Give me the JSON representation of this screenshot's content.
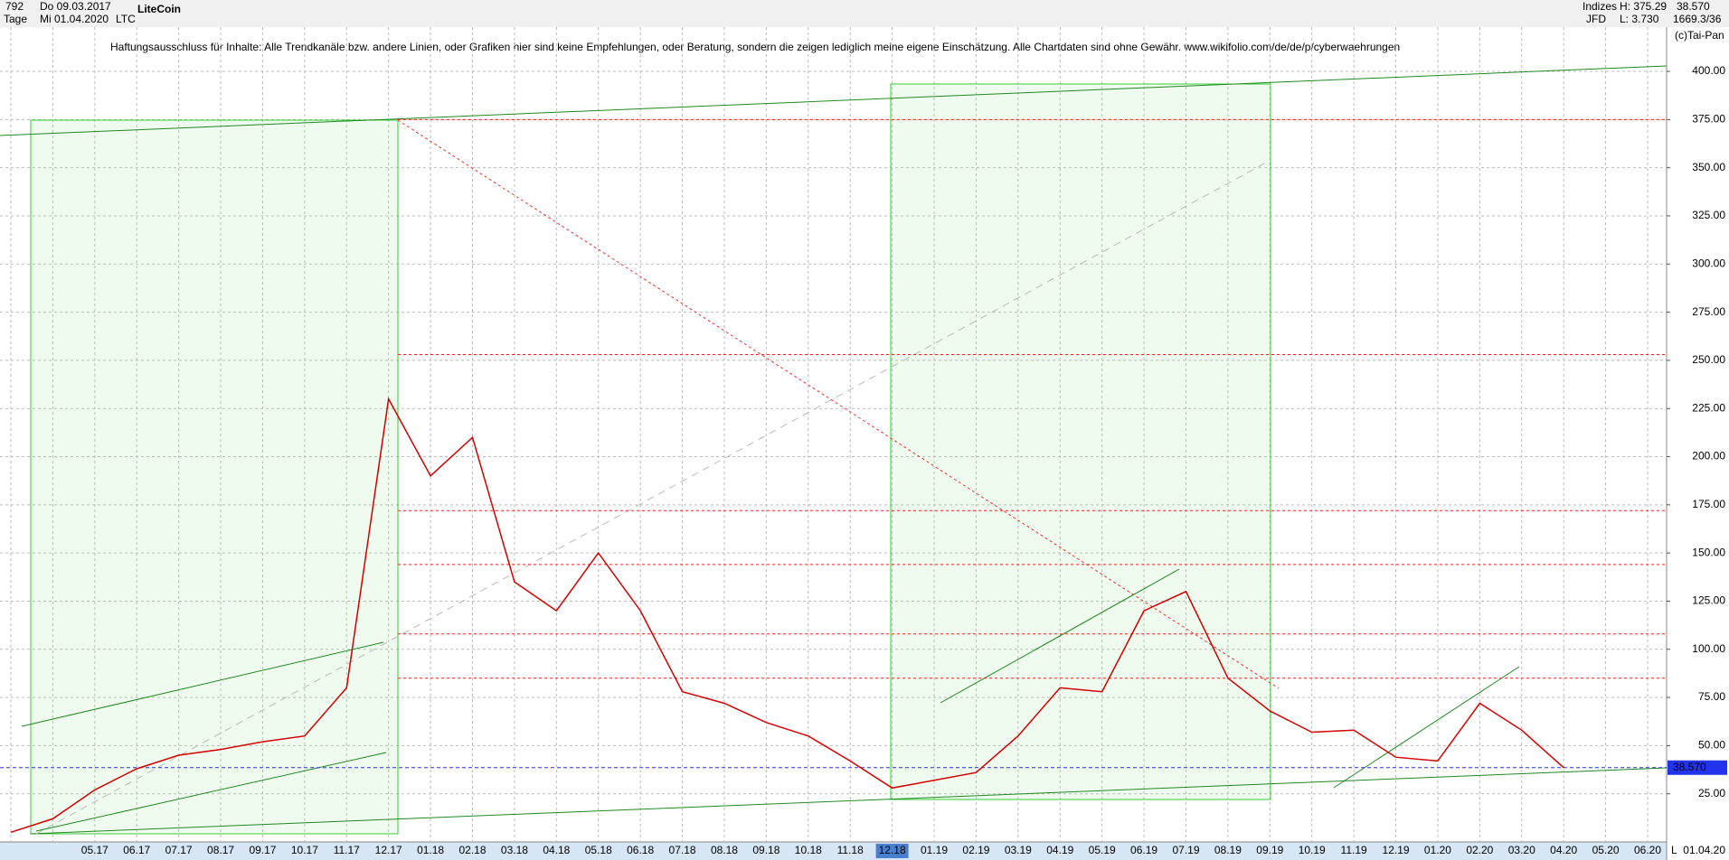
{
  "header": {
    "bars": "792",
    "start": "Do 09.03.2017",
    "period": "Tage",
    "end": "Mi 01.04.2020",
    "name": "LiteCoin",
    "symbol": "LTC",
    "group": "Indizes",
    "source": "JFD",
    "high": "H: 375.29",
    "low": "L: 3.730",
    "last": "38.570",
    "info": "1669.3/36",
    "copyright": "(c)Tai-Pan"
  },
  "disclaimer": "Haftungsausschluss für Inhalte: Alle Trendkanäle bzw. andere Linien, oder Grafiken hier sind keine Empfehlungen, oder Beratung, sondern die zeigen lediglich meine eigene Einschätzung. Alle Chartdaten sind ohne Gewähr.  www.wikifolio.com/de/de/p/cyberwaehrungen",
  "chart_data": {
    "type": "line",
    "categories": [
      null,
      null,
      "05.17",
      "06.17",
      "07.17",
      "08.17",
      "09.17",
      "10.17",
      "11.17",
      "12.17",
      "01.18",
      "02.18",
      "03.18",
      "04.18",
      "05.18",
      "06.18",
      "07.18",
      "08.18",
      "09.18",
      "10.18",
      "11.18",
      "12.18",
      "01.19",
      "02.19",
      "03.19",
      "04.19",
      "05.19",
      "06.19",
      "07.19",
      "08.19",
      "09.19",
      "10.19",
      "11.19",
      "12.19",
      "01.20",
      "02.20",
      "03.20",
      "04.20",
      "05.20",
      "06.20"
    ],
    "series": [
      {
        "color": "#d40000",
        "values": [
          5,
          12,
          27,
          38,
          45,
          48,
          52,
          55,
          80,
          230,
          190,
          210,
          135,
          120,
          150,
          120,
          78,
          72,
          62,
          55,
          42,
          28,
          32,
          36,
          55,
          80,
          78,
          120,
          130,
          85,
          68,
          57,
          58,
          44,
          42,
          72,
          58,
          38.57,
          null,
          null
        ]
      }
    ],
    "ylim": [
      0,
      423
    ],
    "yticks": [
      {
        "value": 25,
        "label": "25.00"
      },
      {
        "value": 50,
        "label": "50.00"
      },
      {
        "value": 75,
        "label": "75.00"
      },
      {
        "value": 100,
        "label": "100.00"
      },
      {
        "value": 125,
        "label": "125.00"
      },
      {
        "value": 150,
        "label": "150.00"
      },
      {
        "value": 175,
        "label": "175.00"
      },
      {
        "value": 200,
        "label": "200.00"
      },
      {
        "value": 225,
        "label": "225.00"
      },
      {
        "value": 250,
        "label": "250.00"
      },
      {
        "value": 275,
        "label": "275.00"
      },
      {
        "value": 300,
        "label": "300.00"
      },
      {
        "value": 325,
        "label": "325.00"
      },
      {
        "value": 350,
        "label": "350.00"
      },
      {
        "value": 375,
        "label": "375.00"
      },
      {
        "value": 400,
        "label": "400.00"
      }
    ],
    "grid": true,
    "levels": [
      375,
      253,
      172,
      144,
      108,
      85
    ],
    "last_price": {
      "value": 38.57,
      "label": "38.570"
    },
    "x_end_label": "01.04.20",
    "corner": "L"
  }
}
